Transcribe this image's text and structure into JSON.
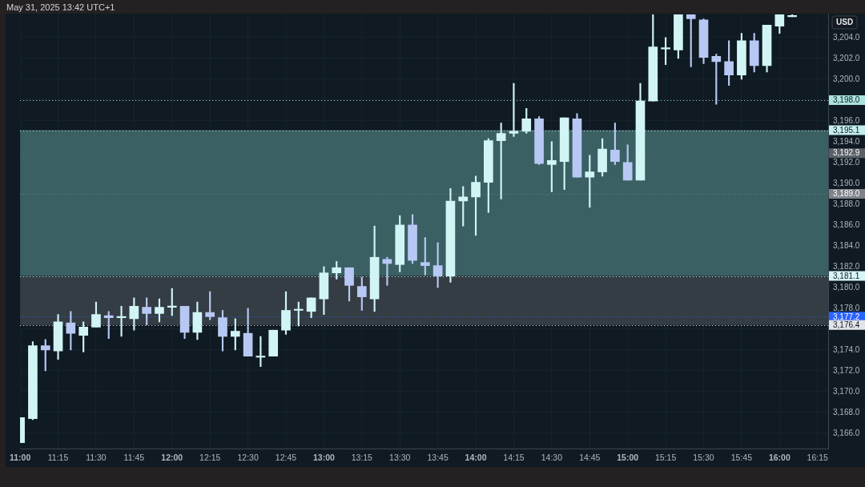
{
  "chart_data": {
    "type": "candlestick",
    "ylabel": "USD",
    "annotations": [
      "May 31, 2025 13:42 UTC+1"
    ],
    "x": [
      11,
      11.0833,
      11.1667,
      11.25,
      11.3333,
      11.4167,
      11.5,
      11.5833,
      11.6667,
      11.75,
      11.8333,
      11.9167,
      12,
      12.0833,
      12.1667,
      12.25,
      12.3333,
      12.4167,
      12.5,
      12.5833,
      12.6667,
      12.75,
      12.8333,
      12.9167,
      13,
      13.0833,
      13.1667,
      13.25,
      13.3333,
      13.4167,
      13.5,
      13.5833,
      13.6667,
      13.75,
      13.8333,
      13.9167,
      14,
      14.0833,
      14.1667,
      14.25,
      14.3333,
      14.4167,
      14.5,
      14.5833,
      14.6667,
      14.75,
      14.8333,
      14.9167,
      15,
      15.0833,
      15.1667,
      15.25,
      15.3333,
      15.4167,
      15.5,
      15.5833,
      15.6667,
      15.75,
      15.8333,
      15.9167,
      16,
      16.0833
    ],
    "ohlc": [
      [
        3165.1,
        3167.5,
        3165.1,
        3167.5
      ],
      [
        3167.4,
        3174.8,
        3167.3,
        3174.4
      ],
      [
        3174.4,
        3175.0,
        3172.0,
        3174.0
      ],
      [
        3173.9,
        3177.4,
        3173.1,
        3176.7
      ],
      [
        3176.6,
        3177.7,
        3174.0,
        3175.6
      ],
      [
        3175.4,
        3176.7,
        3173.8,
        3176.2
      ],
      [
        3176.2,
        3178.6,
        3176.2,
        3177.4
      ],
      [
        3177.3,
        3177.7,
        3175.1,
        3177.1
      ],
      [
        3177.1,
        3178.2,
        3175.3,
        3177.1
      ],
      [
        3177.0,
        3179.0,
        3175.9,
        3178.2
      ],
      [
        3178.1,
        3179.0,
        3176.4,
        3177.5
      ],
      [
        3177.5,
        3178.9,
        3176.7,
        3178.1
      ],
      [
        3178.1,
        3179.9,
        3177.3,
        3178.2
      ],
      [
        3178.2,
        3178.2,
        3175.1,
        3175.7
      ],
      [
        3175.7,
        3178.6,
        3175.0,
        3177.6
      ],
      [
        3177.6,
        3179.6,
        3176.9,
        3177.2
      ],
      [
        3177.1,
        3177.8,
        3173.9,
        3175.3
      ],
      [
        3175.3,
        3177.0,
        3174.0,
        3175.8
      ],
      [
        3175.6,
        3178.0,
        3173.4,
        3173.4
      ],
      [
        3173.3,
        3175.3,
        3172.4,
        3173.3
      ],
      [
        3173.4,
        3175.9,
        3173.4,
        3175.9
      ],
      [
        3175.9,
        3179.6,
        3175.5,
        3177.8
      ],
      [
        3177.8,
        3178.6,
        3176.3,
        3177.8
      ],
      [
        3177.7,
        3179.0,
        3177.1,
        3179.0
      ],
      [
        3178.9,
        3182.0,
        3177.4,
        3181.4
      ],
      [
        3181.4,
        3182.5,
        3180.8,
        3181.9
      ],
      [
        3181.9,
        3181.9,
        3178.7,
        3180.2
      ],
      [
        3180.1,
        3181.0,
        3177.8,
        3179.1
      ],
      [
        3178.9,
        3185.9,
        3177.7,
        3182.9
      ],
      [
        3182.7,
        3182.9,
        3180.2,
        3182.3
      ],
      [
        3182.2,
        3186.9,
        3181.5,
        3186.0
      ],
      [
        3186.0,
        3187.0,
        3182.3,
        3182.6
      ],
      [
        3182.4,
        3184.8,
        3181.2,
        3182.1
      ],
      [
        3182.1,
        3184.3,
        3180.0,
        3181.1
      ],
      [
        3181.1,
        3189.5,
        3180.5,
        3188.3
      ],
      [
        3188.3,
        3189.7,
        3185.9,
        3188.7
      ],
      [
        3188.7,
        3190.7,
        3185.0,
        3190.1
      ],
      [
        3190.1,
        3194.3,
        3187.2,
        3194.1
      ],
      [
        3194.1,
        3195.8,
        3188.5,
        3194.8
      ],
      [
        3194.8,
        3199.6,
        3194.5,
        3195.0
      ],
      [
        3195.0,
        3197.2,
        3194.8,
        3196.2
      ],
      [
        3196.2,
        3196.4,
        3191.8,
        3191.9
      ],
      [
        3191.8,
        3194.0,
        3189.2,
        3192.2
      ],
      [
        3192.1,
        3196.3,
        3189.4,
        3196.3
      ],
      [
        3196.2,
        3196.7,
        3190.6,
        3190.6
      ],
      [
        3190.6,
        3192.7,
        3187.7,
        3191.1
      ],
      [
        3191.1,
        3194.3,
        3190.7,
        3193.3
      ],
      [
        3193.2,
        3195.8,
        3191.8,
        3192.1
      ],
      [
        3192.0,
        3193.7,
        3190.3,
        3190.3
      ],
      [
        3190.3,
        3199.6,
        3190.3,
        3197.9
      ],
      [
        3197.9,
        3206.2,
        3197.9,
        3203.1
      ],
      [
        3202.9,
        3204.0,
        3201.4,
        3203.0
      ],
      [
        3202.8,
        3206.2,
        3202.0,
        3206.2
      ],
      [
        3206.2,
        3206.2,
        3201.2,
        3205.8
      ],
      [
        3205.7,
        3205.8,
        3201.5,
        3202.1
      ],
      [
        3202.2,
        3202.4,
        3197.6,
        3201.7
      ],
      [
        3201.7,
        3203.7,
        3199.4,
        3200.4
      ],
      [
        3200.4,
        3204.4,
        3200.0,
        3203.7
      ],
      [
        3203.7,
        3204.4,
        3200.7,
        3201.3
      ],
      [
        3201.3,
        3205.2,
        3200.7,
        3205.2
      ],
      [
        3205.1,
        3206.2,
        3204.4,
        3206.2
      ],
      [
        3206.0,
        3206.2,
        3206.0,
        3206.1
      ]
    ],
    "colors": [
      "#d1f4f5",
      "#d1f4f5",
      "#b8c8f4",
      "#d1f4f5",
      "#b8c8f4",
      "#d1f4f5",
      "#d1f4f5",
      "#b8c8f4",
      "#d1f4f5",
      "#d1f4f5",
      "#b8c8f4",
      "#d1f4f5",
      "#d1f4f5",
      "#b8c8f4",
      "#d1f4f5",
      "#b8c8f4",
      "#b8c8f4",
      "#d1f4f5",
      "#b8c8f4",
      "#d1f4f5",
      "#d1f4f5",
      "#d1f4f5",
      "#d1f4f5",
      "#d1f4f5",
      "#d1f4f5",
      "#d1f4f5",
      "#b8c8f4",
      "#b8c8f4",
      "#d1f4f5",
      "#b8c8f4",
      "#d1f4f5",
      "#b8c8f4",
      "#b8c8f4",
      "#b8c8f4",
      "#d1f4f5",
      "#d1f4f5",
      "#d1f4f5",
      "#d1f4f5",
      "#d1f4f5",
      "#d1f4f5",
      "#d1f4f5",
      "#b8c8f4",
      "#d1f4f5",
      "#d1f4f5",
      "#b8c8f4",
      "#d1f4f5",
      "#d1f4f5",
      "#b8c8f4",
      "#b8c8f4",
      "#d1f4f5",
      "#d1f4f5",
      "#d1f4f5",
      "#d1f4f5",
      "#b8c8f4",
      "#b8c8f4",
      "#b8c8f4",
      "#b8c8f4",
      "#d1f4f5",
      "#b8c8f4",
      "#d1f4f5",
      "#d1f4f5",
      "#d1f4f5"
    ],
    "xlim": [
      11,
      16.32
    ],
    "xticks": [
      {
        "value": 11,
        "label": "11:00"
      },
      {
        "value": 11.25,
        "label": "11:15"
      },
      {
        "value": 11.5,
        "label": "11:30"
      },
      {
        "value": 11.75,
        "label": "11:45"
      },
      {
        "value": 12,
        "label": "12:00"
      },
      {
        "value": 12.25,
        "label": "12:15"
      },
      {
        "value": 12.5,
        "label": "12:30"
      },
      {
        "value": 12.75,
        "label": "12:45"
      },
      {
        "value": 13,
        "label": "13:00"
      },
      {
        "value": 13.25,
        "label": "13:15"
      },
      {
        "value": 13.5,
        "label": "13:30"
      },
      {
        "value": 13.75,
        "label": "13:45"
      },
      {
        "value": 14,
        "label": "14:00"
      },
      {
        "value": 14.25,
        "label": "14:15"
      },
      {
        "value": 14.5,
        "label": "14:30"
      },
      {
        "value": 14.75,
        "label": "14:45"
      },
      {
        "value": 15,
        "label": "15:00"
      },
      {
        "value": 15.25,
        "label": "15:15"
      },
      {
        "value": 15.5,
        "label": "15:30"
      },
      {
        "value": 15.75,
        "label": "15:45"
      },
      {
        "value": 16,
        "label": "16:00"
      },
      {
        "value": 16.25,
        "label": "16:15"
      }
    ],
    "ylim": [
      3164.5,
      3206.3
    ],
    "yticks": [
      {
        "value": 3166,
        "label": "3,166.0"
      },
      {
        "value": 3168,
        "label": "3,168.0"
      },
      {
        "value": 3170,
        "label": "3,170.0"
      },
      {
        "value": 3172,
        "label": "3,172.0"
      },
      {
        "value": 3174,
        "label": "3,174.0"
      },
      {
        "value": 3176,
        "label": null
      },
      {
        "value": 3178,
        "label": "3,178.0"
      },
      {
        "value": 3180,
        "label": "3,180.0"
      },
      {
        "value": 3182,
        "label": "3,182.0"
      },
      {
        "value": 3184,
        "label": "3,184.0"
      },
      {
        "value": 3186,
        "label": "3,186.0"
      },
      {
        "value": 3188,
        "label": "3,188.0"
      },
      {
        "value": 3190,
        "label": "3,190.0"
      },
      {
        "value": 3192,
        "label": "3,192.0"
      },
      {
        "value": 3194,
        "label": "3,194.0"
      },
      {
        "value": 3196,
        "label": "3,196.0"
      },
      {
        "value": 3198,
        "label": null
      },
      {
        "value": 3200,
        "label": "3,200.0"
      },
      {
        "value": 3202,
        "label": "3,202.0"
      },
      {
        "value": 3204,
        "label": "3,204.0"
      }
    ],
    "grid": true,
    "ref_lines": [
      {
        "axis": "y",
        "value": 3198.0,
        "label": "3,198.0",
        "color": "#a9e3df",
        "line_style": "dotted"
      },
      {
        "axis": "y",
        "value": 3195.1,
        "label": "3,195.1",
        "color": "#c4eeee",
        "line_style": "dotted"
      },
      {
        "axis": "y",
        "value": 3192.9,
        "label": "3,192.9",
        "color": "#5a6068",
        "line_style": "dotted"
      },
      {
        "axis": "y",
        "value": 3189.0,
        "label": "3,189.0",
        "color": "#7e838a",
        "line_style": "dotted"
      },
      {
        "axis": "y",
        "value": 3181.1,
        "label": "3,181.1",
        "color": "#d6f5f5",
        "line_style": "dotted"
      },
      {
        "axis": "y",
        "value": 3177.2,
        "label": "3,177.2",
        "color": "#2962ff",
        "line_style": "dotted"
      },
      {
        "axis": "y",
        "value": 3176.4,
        "label": "3,176.4",
        "color": "#e2e5e8",
        "line_style": "dotted"
      }
    ],
    "bands": [
      {
        "axis": "y",
        "from": 3181.1,
        "to": 3195.1,
        "color": "#3a6064"
      },
      {
        "axis": "y",
        "from": 3176.4,
        "to": 3181.1,
        "color": "#343d43"
      }
    ]
  }
}
